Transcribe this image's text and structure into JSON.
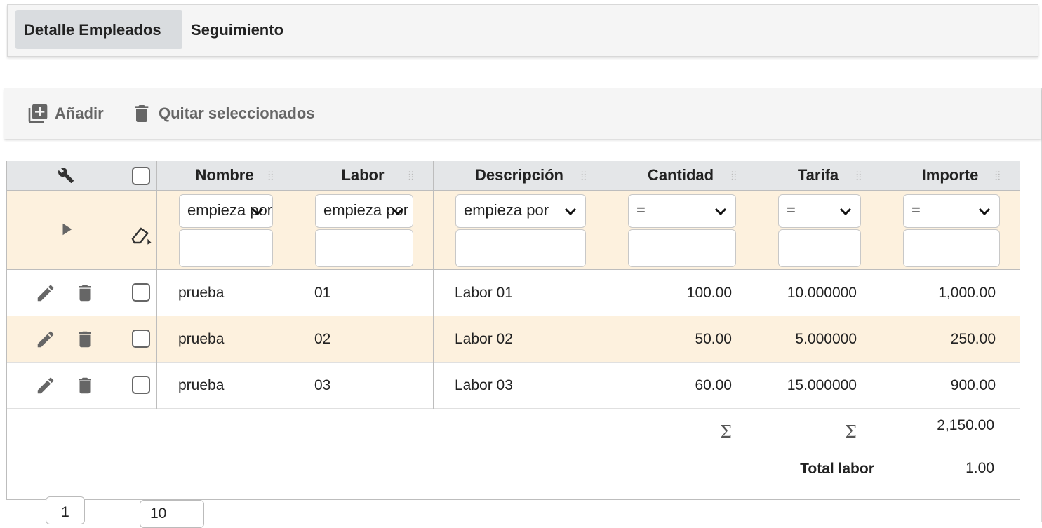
{
  "tabs": [
    "Detalle Empleados",
    "Seguimiento"
  ],
  "toolbar": {
    "add": "Añadir",
    "remove": "Quitar seleccionados"
  },
  "table": {
    "columns": [
      "Nombre",
      "Labor",
      "Descripción",
      "Cantidad",
      "Tarifa",
      "Importe"
    ],
    "filters": [
      "empieza por",
      "empieza por",
      "empieza por",
      "=",
      "=",
      "="
    ],
    "rows": [
      [
        "prueba",
        "01",
        "Labor 01",
        "100.00",
        "10.000000",
        "1,000.00"
      ],
      [
        "prueba",
        "02",
        "Labor 02",
        "50.00",
        "5.000000",
        "250.00"
      ],
      [
        "prueba",
        "03",
        "Labor 03",
        "60.00",
        "15.000000",
        "900.00"
      ]
    ],
    "totals": {
      "cantidad": "Σ",
      "tarifa": "Σ",
      "importe": "2,150.00",
      "label": "Total labor",
      "labor_total": "1.00"
    }
  },
  "pagination": {
    "page": "1",
    "page_size": "10"
  }
}
